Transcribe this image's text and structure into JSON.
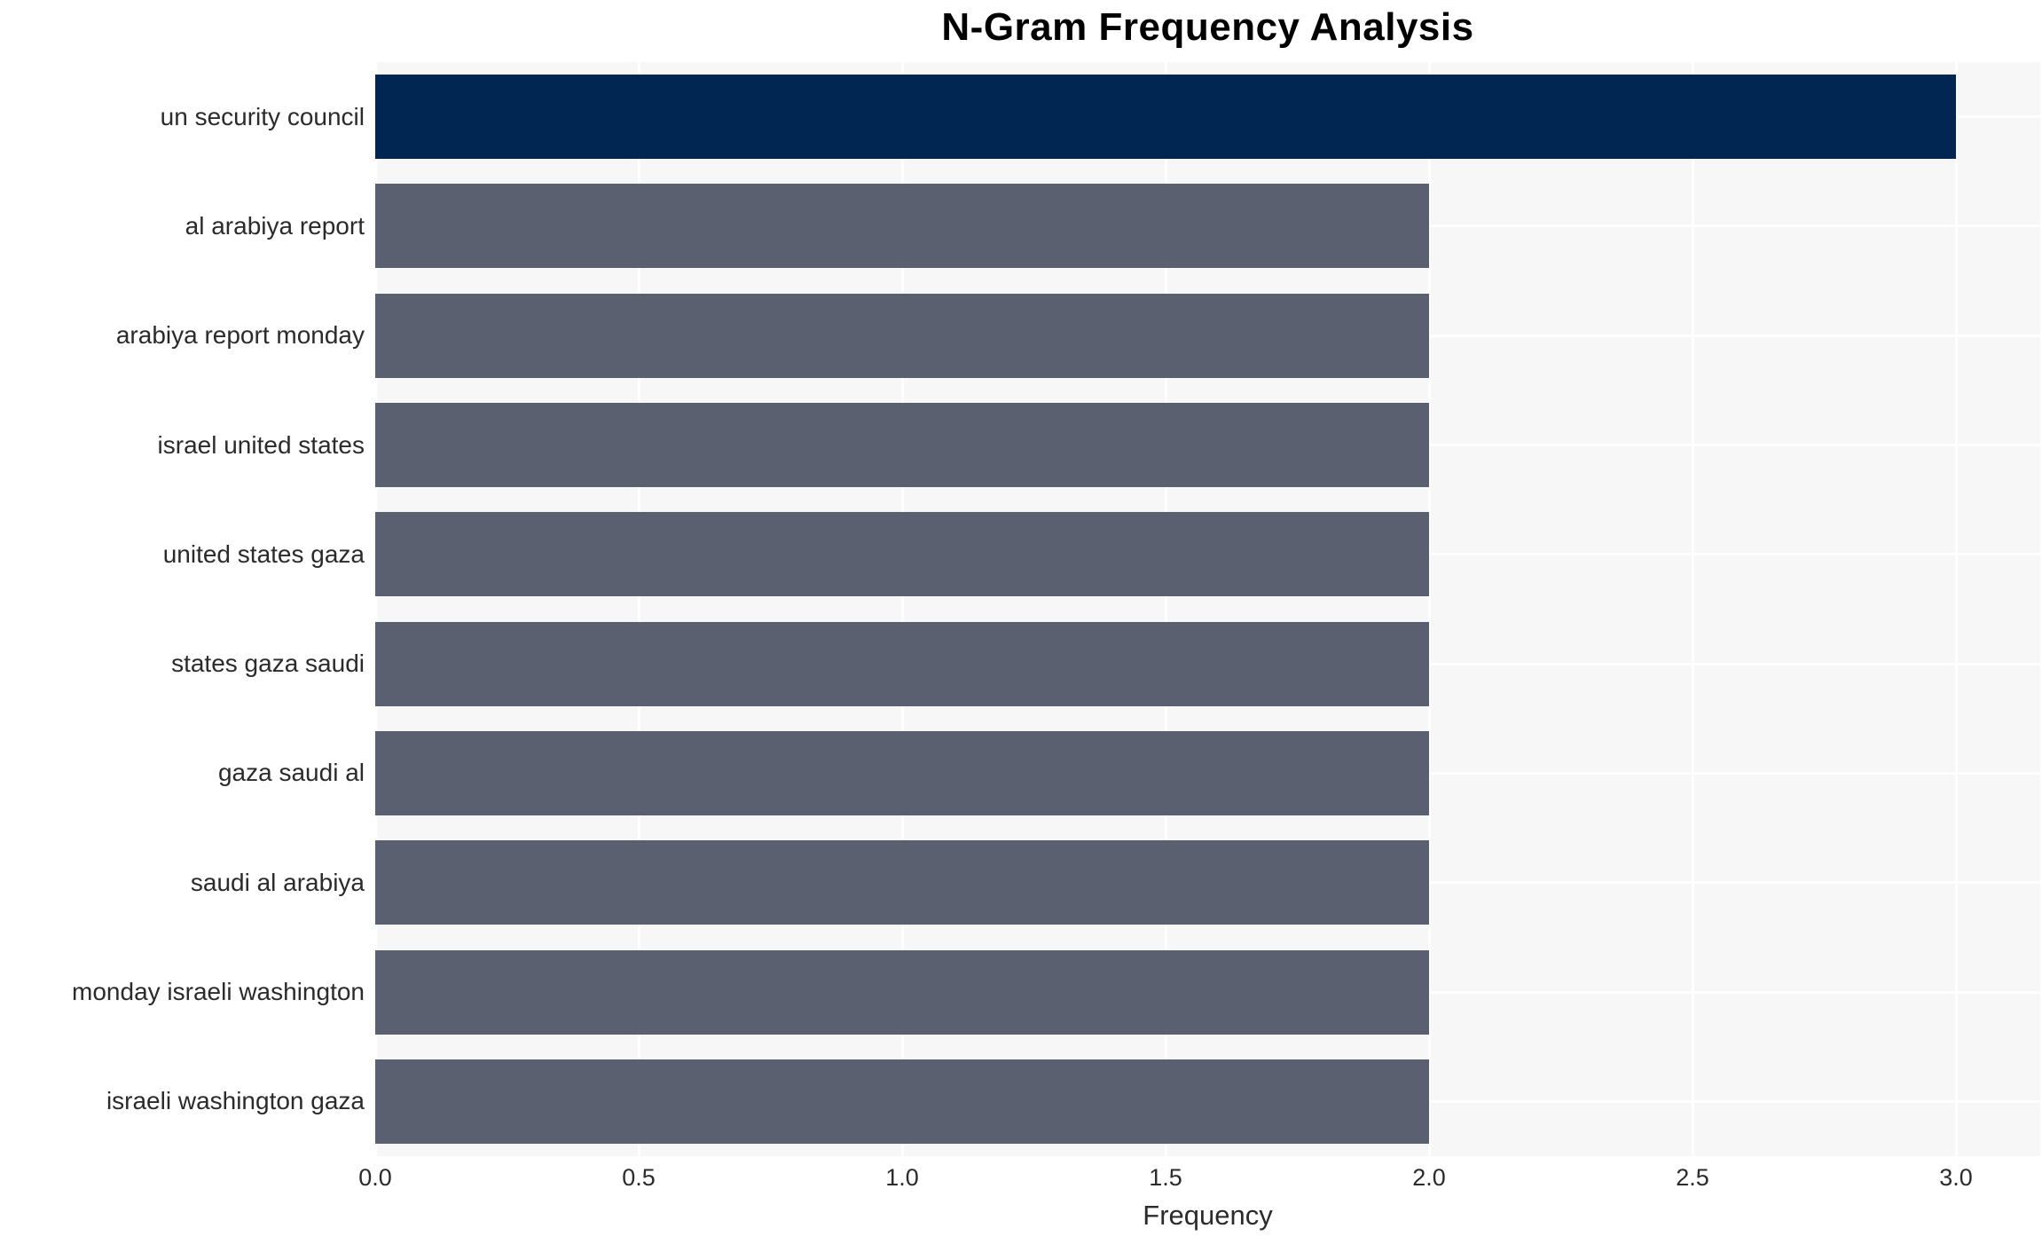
{
  "chart_data": {
    "type": "bar",
    "orientation": "horizontal",
    "title": "N-Gram Frequency Analysis",
    "xlabel": "Frequency",
    "ylabel": "",
    "categories": [
      "un security council",
      "al arabiya report",
      "arabiya report monday",
      "israel united states",
      "united states gaza",
      "states gaza saudi",
      "gaza saudi al",
      "saudi al arabiya",
      "monday israeli washington",
      "israeli washington gaza"
    ],
    "values": [
      3,
      2,
      2,
      2,
      2,
      2,
      2,
      2,
      2,
      2
    ],
    "highlight_index": 0,
    "xtick_labels": [
      "0.0",
      "0.5",
      "1.0",
      "1.5",
      "2.0",
      "2.5",
      "3.0"
    ],
    "xtick_values": [
      0,
      0.5,
      1,
      1.5,
      2,
      2.5,
      3
    ],
    "xlim": [
      0,
      3.16
    ],
    "grid": true,
    "legend_position": "none",
    "colors": {
      "highlight_bar": "#022652",
      "default_bar": "#5a606f",
      "plot_background": "#f7f7f8",
      "gridline": "#ffffff",
      "tick_text": "#2b2b2b",
      "title_text": "#000000"
    }
  }
}
